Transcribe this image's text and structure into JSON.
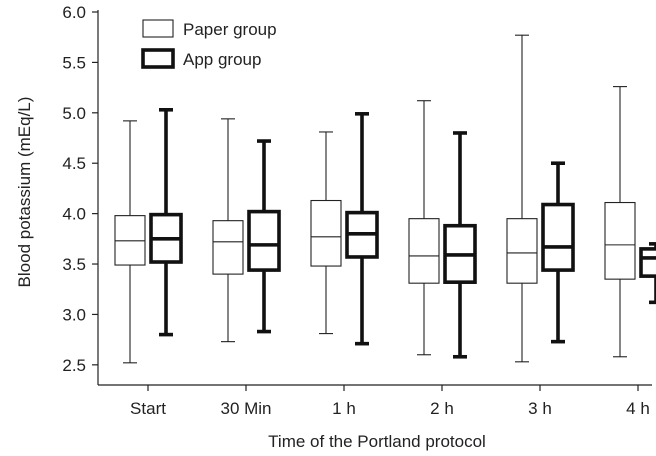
{
  "chart_data": {
    "type": "box",
    "title": "",
    "xlabel": "Time of the Portland protocol",
    "ylabel": "Blood potassium (mEq/L)",
    "ylim": [
      2.3,
      6.0
    ],
    "yticks": [
      "2.5",
      "3.0",
      "3.5",
      "4.0",
      "4.5",
      "5.0",
      "5.5",
      "6.0"
    ],
    "categories": [
      "Start",
      "30 Min",
      "1 h",
      "2 h",
      "3 h",
      "4 h"
    ],
    "legend_position": "top-left",
    "grid": false,
    "series": [
      {
        "name": "Paper group",
        "color": "#222222",
        "style": "thin",
        "boxes": [
          {
            "min": 2.52,
            "q1": 3.49,
            "median": 3.73,
            "q3": 3.98,
            "max": 4.92
          },
          {
            "min": 2.73,
            "q1": 3.4,
            "median": 3.72,
            "q3": 3.93,
            "max": 4.94
          },
          {
            "min": 2.81,
            "q1": 3.48,
            "median": 3.77,
            "q3": 4.13,
            "max": 4.81
          },
          {
            "min": 2.6,
            "q1": 3.31,
            "median": 3.58,
            "q3": 3.95,
            "max": 5.12
          },
          {
            "min": 2.53,
            "q1": 3.31,
            "median": 3.61,
            "q3": 3.95,
            "max": 5.77
          },
          {
            "min": 2.58,
            "q1": 3.35,
            "median": 3.69,
            "q3": 4.11,
            "max": 5.26
          }
        ]
      },
      {
        "name": "App group",
        "color": "#111111",
        "style": "bold",
        "boxes": [
          {
            "min": 2.8,
            "q1": 3.52,
            "median": 3.75,
            "q3": 3.99,
            "max": 5.03
          },
          {
            "min": 2.83,
            "q1": 3.44,
            "median": 3.69,
            "q3": 4.02,
            "max": 4.72
          },
          {
            "min": 2.71,
            "q1": 3.57,
            "median": 3.8,
            "q3": 4.01,
            "max": 4.99
          },
          {
            "min": 2.58,
            "q1": 3.32,
            "median": 3.59,
            "q3": 3.88,
            "max": 4.8
          },
          {
            "min": 2.73,
            "q1": 3.44,
            "median": 3.67,
            "q3": 4.09,
            "max": 4.5
          },
          {
            "min": 3.12,
            "q1": 3.38,
            "median": 3.56,
            "q3": 3.65,
            "max": 3.7
          }
        ]
      }
    ]
  }
}
